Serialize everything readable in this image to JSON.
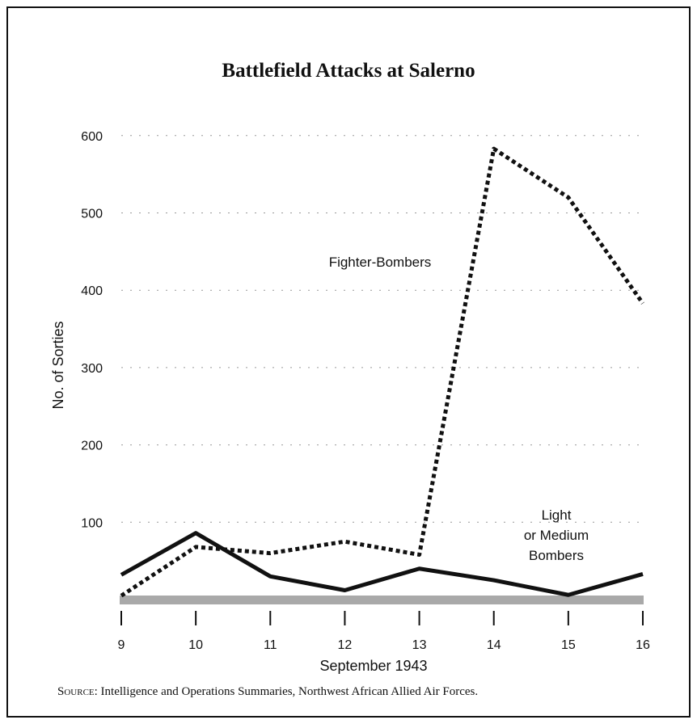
{
  "chart_data": {
    "type": "line",
    "title": "Battlefield Attacks at Salerno",
    "xlabel": "September 1943",
    "ylabel": "No. of Sorties",
    "x": [
      9,
      10,
      11,
      12,
      13,
      14,
      15,
      16
    ],
    "x_tick_labels": [
      "9",
      "10",
      "11",
      "12",
      "13",
      "14",
      "15",
      "16"
    ],
    "y_ticks": [
      100,
      200,
      300,
      400,
      500,
      600
    ],
    "ylim": [
      0,
      620
    ],
    "grid": "dotted horizontal",
    "series": [
      {
        "name": "Fighter-Bombers",
        "style": "dotted",
        "color": "#111111",
        "values": [
          5,
          68,
          60,
          75,
          58,
          583,
          520,
          383
        ]
      },
      {
        "name": "Light or Medium Bombers",
        "name_lines": [
          "Light",
          "or Medium",
          "Bombers"
        ],
        "style": "solid",
        "color": "#111111",
        "values": [
          32,
          86,
          30,
          12,
          40,
          25,
          6,
          33
        ]
      }
    ]
  },
  "source": {
    "prefix": "Source:",
    "text": " Intelligence and Operations Summaries, Northwest African Allied Air Forces."
  }
}
